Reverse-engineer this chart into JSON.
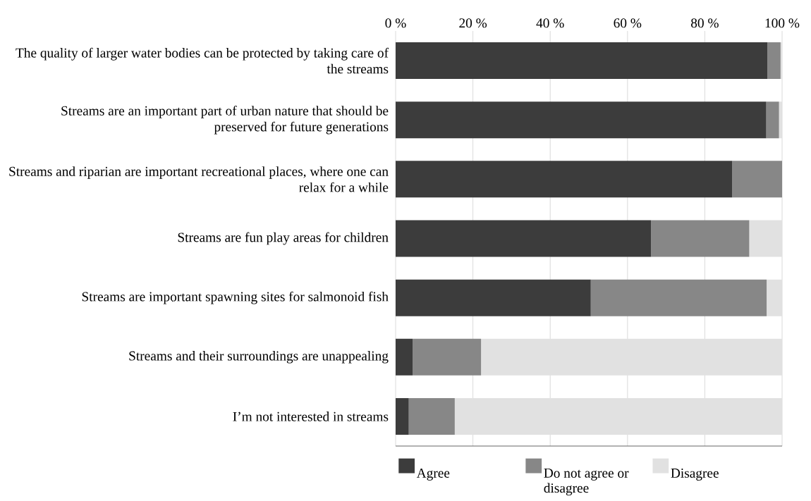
{
  "chart_data": {
    "type": "bar",
    "orientation": "horizontal",
    "stacked": true,
    "categories": [
      "The quality of larger water bodies can be protected by taking care of the streams",
      "Streams are an important part of urban nature that should be preserved for future generations",
      "Streams and riparian are important recreational places, where one can relax for a while",
      "Streams are fun play areas for children",
      "Streams are important spawning sites for salmonoid fish",
      "Streams and their surroundings are unappealing",
      "I’m not interested in streams"
    ],
    "series": [
      {
        "name": "Agree",
        "color": "#3c3c3c",
        "values": [
          96.2,
          95.9,
          87.1,
          66.1,
          50.5,
          4.4,
          3.4
        ]
      },
      {
        "name": "Do not agree or disagree",
        "color": "#878787",
        "values": [
          3.4,
          3.3,
          12.9,
          25.4,
          45.5,
          17.7,
          11.9
        ]
      },
      {
        "name": "Disagree",
        "color": "#e1e1e1",
        "values": [
          0.4,
          0.8,
          0,
          8.5,
          4.0,
          77.9,
          84.7
        ]
      }
    ],
    "xlim": [
      0,
      100
    ],
    "xticks": [
      {
        "value": 0,
        "label": "0 %"
      },
      {
        "value": 20,
        "label": "20 %"
      },
      {
        "value": 40,
        "label": "40 %"
      },
      {
        "value": 60,
        "label": "60 %"
      },
      {
        "value": 80,
        "label": "80 %"
      },
      {
        "value": 100,
        "label": "100 %"
      }
    ],
    "grid": "x",
    "legend": "bottom"
  }
}
